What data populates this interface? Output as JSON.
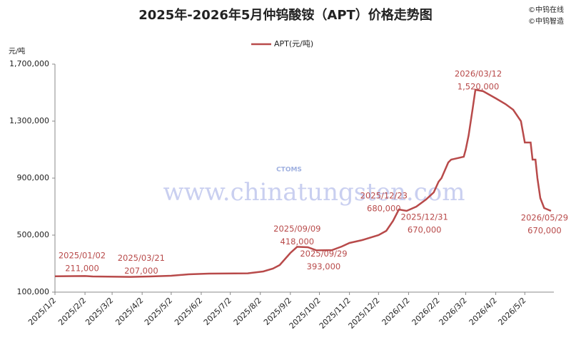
{
  "chart_data": {
    "type": "line",
    "title": "2025年-2026年5月仲钨酸铵（APT）价格走势图",
    "y_axis_label": "元/吨",
    "copyright": [
      "©中钨在线",
      "©中钨智造"
    ],
    "watermark": [
      "CTOMS",
      "www.chinatungsten.com"
    ],
    "x": [
      "2025/1/2",
      "2025/2/2",
      "2025/2/10",
      "2025/3/21",
      "2025/4/10",
      "2025/5/2",
      "2025/5/20",
      "2025/6/10",
      "2025/7/20",
      "2025/8/5",
      "2025/8/15",
      "2025/8/22",
      "2025/9/2",
      "2025/9/9",
      "2025/9/20",
      "2025/9/29",
      "2025/10/15",
      "2025/10/25",
      "2025/11/2",
      "2025/11/15",
      "2025/12/2",
      "2025/12/10",
      "2025/12/17",
      "2025/12/23",
      "2025/12/31",
      "2026/1/10",
      "2026/1/20",
      "2026/1/28",
      "2026/2/2",
      "2026/2/5",
      "2026/2/12",
      "2026/2/15",
      "2026/2/28",
      "2026/3/2",
      "2026/3/5",
      "2026/3/9",
      "2026/3/12",
      "2026/3/20",
      "2026/4/2",
      "2026/4/12",
      "2026/4/20",
      "2026/4/28",
      "2026/5/2",
      "2026/5/8",
      "2026/5/10",
      "2026/5/13",
      "2026/5/15",
      "2026/5/18",
      "2026/5/22",
      "2026/5/29"
    ],
    "series": [
      {
        "name": "APT(元/吨)",
        "color": "#b84a4a",
        "values": [
          211000,
          213000,
          210000,
          207000,
          210000,
          215000,
          225000,
          230000,
          232000,
          245000,
          265000,
          290000,
          375000,
          418000,
          415000,
          393000,
          395000,
          420000,
          445000,
          465000,
          500000,
          530000,
          600000,
          680000,
          670000,
          700000,
          750000,
          800000,
          875000,
          900000,
          1010000,
          1030000,
          1050000,
          1100000,
          1200000,
          1380000,
          1520000,
          1510000,
          1460000,
          1420000,
          1380000,
          1300000,
          1150000,
          1150000,
          1030000,
          1030000,
          900000,
          760000,
          690000,
          670000
        ]
      }
    ],
    "annotations": [
      {
        "label": "2025/01/02",
        "value": 211000,
        "value_label": "211,000"
      },
      {
        "label": "2025/03/21",
        "value": 207000,
        "value_label": "207,000"
      },
      {
        "label": "2025/09/09",
        "value": 418000,
        "value_label": "418,000"
      },
      {
        "label": "2025/09/29",
        "value": 393000,
        "value_label": "393,000"
      },
      {
        "label": "2025/12/23",
        "value": 680000,
        "value_label": "680,000"
      },
      {
        "label": "2025/12/31",
        "value": 670000,
        "value_label": "670,000"
      },
      {
        "label": "2026/03/12",
        "value": 1520000,
        "value_label": "1,520,000"
      },
      {
        "label": "2026/05/29",
        "value": 670000,
        "value_label": "670,000"
      }
    ],
    "xlim": [
      "2025/1/2",
      "2026/6/1"
    ],
    "xticks": [
      "2025/1/2",
      "2025/2/2",
      "2025/3/2",
      "2025/4/2",
      "2025/5/2",
      "2025/6/2",
      "2025/7/2",
      "2025/8/2",
      "2025/9/2",
      "2025/10/2",
      "2025/11/2",
      "2025/12/2",
      "2026/1/2",
      "2026/2/2",
      "2026/3/2",
      "2026/4/2",
      "2026/5/2"
    ],
    "ylim": [
      100000,
      1700000
    ],
    "yticks": [
      {
        "value": 100000,
        "label": "100,000"
      },
      {
        "value": 500000,
        "label": "500,000"
      },
      {
        "value": 900000,
        "label": "900,000"
      },
      {
        "value": 1300000,
        "label": "1,300,000"
      },
      {
        "value": 1700000,
        "label": "1,700,000"
      }
    ],
    "grid": false,
    "legend": "top"
  }
}
